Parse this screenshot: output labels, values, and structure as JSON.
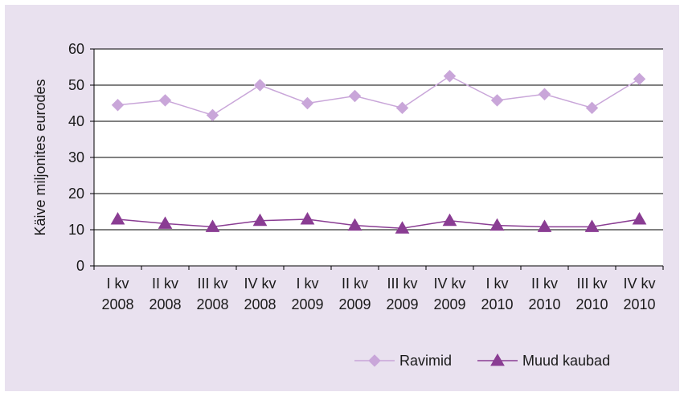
{
  "chart_data": {
    "type": "line",
    "ylabel": "Käive miljonites eurodes",
    "ylim": [
      0,
      60
    ],
    "yticks": [
      0,
      10,
      20,
      30,
      40,
      50,
      60
    ],
    "grid": true,
    "legend_position": "bottom-right",
    "categories": [
      [
        "I kv",
        "2008"
      ],
      [
        "II kv",
        "2008"
      ],
      [
        "III kv",
        "2008"
      ],
      [
        "IV kv",
        "2008"
      ],
      [
        "I kv",
        "2009"
      ],
      [
        "II kv",
        "2009"
      ],
      [
        "III kv",
        "2009"
      ],
      [
        "IV kv",
        "2009"
      ],
      [
        "I kv",
        "2010"
      ],
      [
        "II kv",
        "2010"
      ],
      [
        "III kv",
        "2010"
      ],
      [
        "IV kv",
        "2010"
      ]
    ],
    "series": [
      {
        "name": "Ravimid",
        "marker": "diamond",
        "color": "#c9a6d9",
        "values": [
          44.5,
          45.8,
          41.7,
          50.0,
          45.0,
          47.0,
          43.7,
          52.5,
          45.8,
          47.5,
          43.7,
          51.7
        ]
      },
      {
        "name": "Muud kaubad",
        "marker": "triangle",
        "color": "#8a3d93",
        "values": [
          12.9,
          11.7,
          10.8,
          12.5,
          12.9,
          11.2,
          10.4,
          12.5,
          11.2,
          10.8,
          10.8,
          12.9
        ]
      }
    ]
  }
}
